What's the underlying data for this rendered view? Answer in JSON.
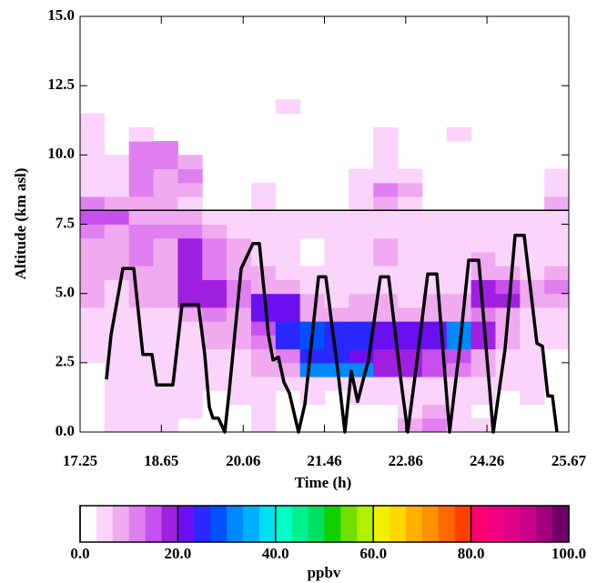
{
  "chart_data": {
    "type": "heatmap",
    "xlabel": "Time (h)",
    "ylabel": "Altitude (km asl)",
    "xlim": [
      17.25,
      25.67
    ],
    "xticks": [
      17.25,
      18.65,
      20.06,
      21.46,
      22.86,
      24.26,
      25.67
    ],
    "ylim": [
      0,
      15
    ],
    "yticks": [
      {
        "value": 0,
        "label": "0.0"
      },
      2.5,
      {
        "value": 5,
        "label": "5.0"
      },
      7.5,
      {
        "value": 10,
        "label": "10.0"
      },
      12.5,
      {
        "value": 15,
        "label": "15.0"
      }
    ],
    "x_bins": [
      17.25,
      17.671,
      18.092,
      18.513,
      18.934,
      19.355,
      19.776,
      20.197,
      20.618,
      21.039,
      21.46,
      21.881,
      22.302,
      22.723,
      23.144,
      23.565,
      23.986,
      24.407,
      24.828,
      25.249,
      25.67
    ],
    "y_bins": [
      0,
      0.5,
      1,
      1.5,
      2,
      2.5,
      3,
      3.5,
      4,
      4.5,
      5,
      5.5,
      6,
      6.5,
      7,
      7.5,
      8,
      8.5,
      9,
      9.5,
      10,
      10.5,
      11,
      11.5,
      12
    ],
    "z": [
      [
        null,
        5,
        5,
        5,
        null,
        null,
        null,
        5,
        null,
        null,
        null,
        null,
        null,
        8,
        12,
        5,
        5,
        null,
        null,
        null
      ],
      [
        null,
        5,
        5,
        5,
        5,
        null,
        null,
        5,
        null,
        null,
        null,
        null,
        null,
        5,
        8,
        5,
        null,
        null,
        null,
        null
      ],
      [
        null,
        5,
        5,
        5,
        5,
        null,
        5,
        5,
        null,
        5,
        null,
        5,
        5,
        5,
        5,
        5,
        5,
        null,
        5,
        null
      ],
      [
        null,
        5,
        5,
        5,
        5,
        5,
        5,
        5,
        5,
        5,
        5,
        5,
        5,
        5,
        5,
        5,
        5,
        5,
        5,
        null
      ],
      [
        null,
        5,
        5,
        5,
        5,
        5,
        5,
        8,
        8,
        32,
        32,
        30,
        18,
        18,
        16,
        12,
        8,
        5,
        5,
        null
      ],
      [
        5,
        5,
        5,
        5,
        5,
        5,
        5,
        8,
        12,
        26,
        26,
        22,
        18,
        17,
        16,
        14,
        8,
        5,
        5,
        null
      ],
      [
        5,
        5,
        5,
        5,
        5,
        8,
        8,
        12,
        25,
        28,
        25,
        25,
        22,
        22,
        22,
        30,
        18,
        8,
        5,
        5
      ],
      [
        5,
        5,
        5,
        5,
        5,
        8,
        8,
        14,
        25,
        28,
        25,
        25,
        22,
        22,
        22,
        30,
        18,
        8,
        5,
        5
      ],
      [
        5,
        5,
        5,
        5,
        8,
        12,
        8,
        20,
        22,
        8,
        8,
        8,
        8,
        8,
        8,
        8,
        12,
        8,
        5,
        5
      ],
      [
        8,
        5,
        8,
        8,
        17,
        17,
        12,
        22,
        20,
        8,
        5,
        8,
        8,
        5,
        8,
        8,
        17,
        17,
        8,
        8
      ],
      [
        8,
        5,
        8,
        8,
        17,
        17,
        12,
        8,
        8,
        5,
        5,
        5,
        5,
        5,
        5,
        5,
        17,
        14,
        8,
        12
      ],
      [
        8,
        8,
        8,
        8,
        17,
        12,
        8,
        8,
        5,
        5,
        5,
        5,
        5,
        5,
        5,
        5,
        8,
        8,
        5,
        8
      ],
      [
        8,
        8,
        12,
        8,
        18,
        12,
        8,
        5,
        5,
        null,
        5,
        5,
        8,
        5,
        5,
        5,
        8,
        5,
        5,
        5
      ],
      [
        8,
        8,
        12,
        8,
        18,
        12,
        8,
        5,
        5,
        null,
        5,
        5,
        8,
        5,
        5,
        5,
        5,
        5,
        5,
        5
      ],
      [
        12,
        8,
        12,
        12,
        12,
        8,
        5,
        5,
        5,
        5,
        5,
        5,
        5,
        5,
        5,
        5,
        5,
        5,
        5,
        5
      ],
      [
        14,
        14,
        8,
        8,
        8,
        5,
        5,
        5,
        5,
        5,
        5,
        5,
        5,
        5,
        5,
        5,
        5,
        5,
        5,
        5
      ],
      [
        12,
        8,
        8,
        8,
        5,
        null,
        null,
        5,
        null,
        null,
        null,
        5,
        8,
        5,
        null,
        null,
        null,
        null,
        null,
        8
      ],
      [
        5,
        5,
        12,
        8,
        8,
        null,
        null,
        5,
        null,
        null,
        null,
        5,
        12,
        8,
        null,
        null,
        null,
        null,
        null,
        5
      ],
      [
        5,
        5,
        12,
        8,
        12,
        null,
        null,
        null,
        null,
        null,
        null,
        5,
        5,
        5,
        null,
        null,
        null,
        null,
        null,
        5
      ],
      [
        5,
        5,
        12,
        12,
        8,
        null,
        null,
        null,
        null,
        null,
        null,
        null,
        5,
        null,
        null,
        null,
        null,
        null,
        null,
        null
      ],
      [
        5,
        null,
        12,
        12,
        null,
        null,
        null,
        null,
        null,
        null,
        null,
        null,
        5,
        null,
        null,
        null,
        null,
        null,
        null,
        null
      ],
      [
        5,
        null,
        5,
        null,
        null,
        null,
        null,
        null,
        null,
        null,
        null,
        null,
        5,
        null,
        null,
        5,
        null,
        null,
        null,
        null
      ],
      [
        5,
        null,
        null,
        null,
        null,
        null,
        null,
        null,
        null,
        null,
        null,
        null,
        null,
        null,
        null,
        null,
        null,
        null,
        null,
        null
      ],
      [
        null,
        null,
        null,
        null,
        null,
        null,
        null,
        null,
        5,
        null,
        null,
        null,
        null,
        null,
        null,
        null,
        null,
        null,
        null,
        null
      ]
    ],
    "clim": [
      0,
      100
    ],
    "colormap": [
      "#ffffff",
      "#fad4fa",
      "#f0aaf0",
      "#e080f0",
      "#c850f0",
      "#a020e0",
      "#6a10f0",
      "#2828ff",
      "#0050ff",
      "#0088ff",
      "#00b0ff",
      "#00e0f0",
      "#00ffc8",
      "#00f090",
      "#00e060",
      "#10d000",
      "#70e000",
      "#b0f000",
      "#f0f000",
      "#ffd800",
      "#ffb000",
      "#ff9000",
      "#ff6800",
      "#ff4000",
      "#ff0070",
      "#f00080",
      "#e00088",
      "#c80088",
      "#a00080",
      "#700068"
    ],
    "colorbar_label": "ppbv",
    "colorbar_ticks": [
      {
        "value": 0,
        "label": "0.0"
      },
      {
        "value": 20,
        "label": "20.0"
      },
      {
        "value": 40,
        "label": "40.0"
      },
      {
        "value": 60,
        "label": "60.0"
      },
      {
        "value": 80,
        "label": "80.0"
      },
      {
        "value": 100,
        "label": "100.0"
      }
    ],
    "hline": 8,
    "line": {
      "color": "#000000",
      "x": [
        17.705,
        17.783,
        17.987,
        18.175,
        18.332,
        18.489,
        18.567,
        18.849,
        19.006,
        19.288,
        19.398,
        19.477,
        19.539,
        19.633,
        19.743,
        19.822,
        20.025,
        20.229,
        20.339,
        20.496,
        20.574,
        20.668,
        20.762,
        20.856,
        21.013,
        21.123,
        21.358,
        21.484,
        21.703,
        21.813,
        21.923,
        22.032,
        22.142,
        22.221,
        22.424,
        22.566,
        22.769,
        22.895,
        23.052,
        23.24,
        23.397,
        23.616,
        23.789,
        23.945,
        24.118,
        24.369,
        24.573,
        24.745,
        24.902,
        25.121,
        25.216,
        25.31,
        25.388,
        25.466
      ],
      "y": [
        1.9,
        3.5,
        5.9,
        5.9,
        2.8,
        2.8,
        1.7,
        1.7,
        4.6,
        4.6,
        2.8,
        0.9,
        0.5,
        0.5,
        0,
        1.5,
        5.9,
        6.8,
        6.8,
        3.5,
        2.6,
        2.7,
        1.8,
        1.4,
        0,
        1,
        5.6,
        5.6,
        2,
        0,
        2.2,
        1.1,
        2,
        2.6,
        5.6,
        5.6,
        2,
        0,
        2.5,
        5.7,
        5.7,
        0,
        3,
        6.2,
        6.2,
        0,
        3,
        7.1,
        7.1,
        3.2,
        3.1,
        1.3,
        1.3,
        0
      ]
    }
  }
}
